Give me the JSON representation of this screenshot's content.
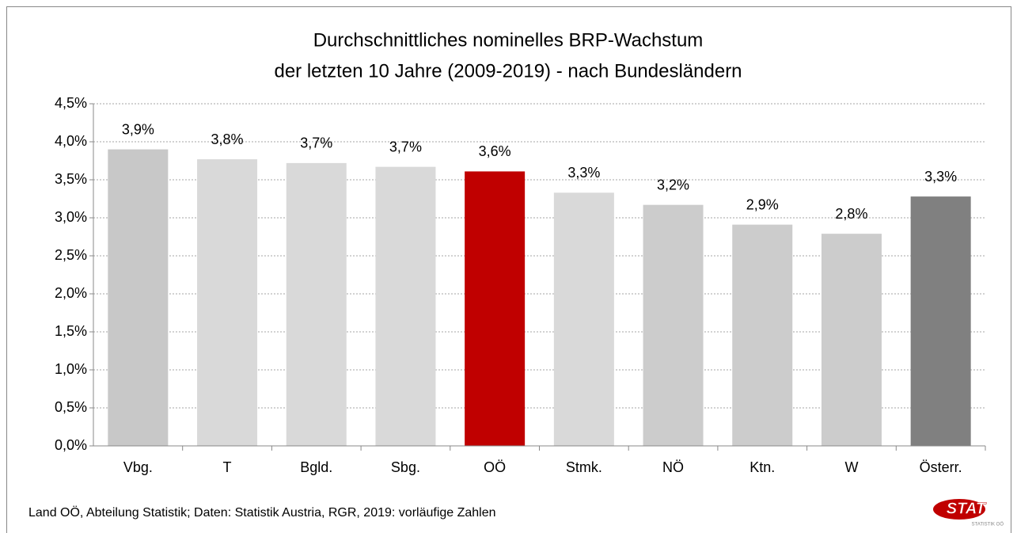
{
  "chart_data": {
    "type": "bar",
    "title": "Durchschnittliches nominelles BRP-Wachstum",
    "subtitle": "der letzten 10 Jahre (2009-2019) - nach Bundesländern",
    "categories": [
      "Vbg.",
      "T",
      "Bgld.",
      "Sbg.",
      "OÖ",
      "Stmk.",
      "NÖ",
      "Ktn.",
      "W",
      "Österr."
    ],
    "values": [
      3.9,
      3.77,
      3.72,
      3.67,
      3.61,
      3.33,
      3.17,
      2.91,
      2.79,
      3.28
    ],
    "value_labels": [
      "3,9%",
      "3,8%",
      "3,7%",
      "3,7%",
      "3,6%",
      "3,3%",
      "3,2%",
      "2,9%",
      "2,8%",
      "3,3%"
    ],
    "colors": [
      "#c8c8c8",
      "#d9d9d9",
      "#d9d9d9",
      "#d9d9d9",
      "#c00000",
      "#d9d9d9",
      "#cccccc",
      "#cccccc",
      "#cccccc",
      "#808080"
    ],
    "ylim": [
      0,
      4.5
    ],
    "yticks": [
      {
        "value": 0,
        "label": "0,0%"
      },
      {
        "value": 0.5,
        "label": "0,5%"
      },
      {
        "value": 1,
        "label": "1,0%"
      },
      {
        "value": 1.5,
        "label": "1,5%"
      },
      {
        "value": 2,
        "label": "2,0%"
      },
      {
        "value": 2.5,
        "label": "2,5%"
      },
      {
        "value": 3,
        "label": "3,0%"
      },
      {
        "value": 3.5,
        "label": "3,5%"
      },
      {
        "value": 4,
        "label": "4,0%"
      },
      {
        "value": 4.5,
        "label": "4,5%"
      }
    ],
    "grid": true,
    "source": "Land OÖ, Abteilung Statistik; Daten: Statistik Austria, RGR, 2019: vorläufige Zahlen",
    "logo": {
      "text": "STAT",
      "subtext": "STATISTIK OÖ"
    }
  }
}
